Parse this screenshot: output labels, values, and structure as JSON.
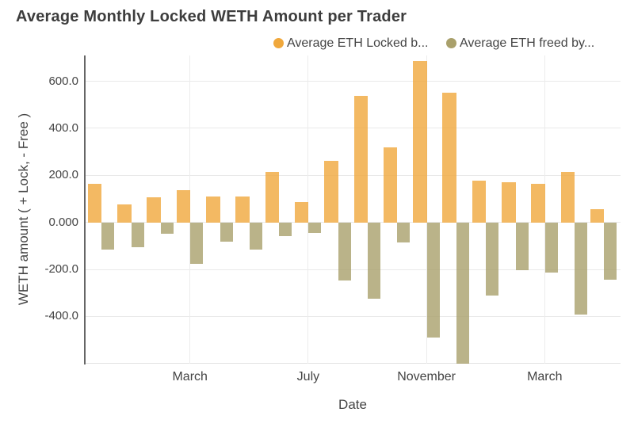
{
  "chart_data": {
    "type": "bar",
    "title": "Average Monthly Locked WETH Amount per Trader",
    "xlabel": "Date",
    "ylabel": "WETH amount ( + Lock, - Free )",
    "grid": true,
    "legend_position": "top",
    "ylim": [
      -601,
      710
    ],
    "y_ticks": [
      {
        "value": 600,
        "label": "600.0"
      },
      {
        "value": 400,
        "label": "400.0"
      },
      {
        "value": 200,
        "label": "200.0"
      },
      {
        "value": 0,
        "label": "0.000"
      },
      {
        "value": -200,
        "label": "-200.0"
      },
      {
        "value": -400,
        "label": "-400.0"
      }
    ],
    "x_ticks": [
      {
        "group_index": 3,
        "label": "March"
      },
      {
        "group_index": 7,
        "label": "July"
      },
      {
        "group_index": 11,
        "label": "November"
      },
      {
        "group_index": 15,
        "label": "March"
      }
    ],
    "group_count": 18,
    "series": [
      {
        "name": "Average ETH Locked b...",
        "color": "#F0A83C",
        "values": [
          163,
          76,
          107,
          138,
          110,
          110,
          215,
          85,
          262,
          537,
          319,
          688,
          552,
          177,
          171,
          165,
          216,
          57
        ]
      },
      {
        "name": "Average ETH freed by...",
        "color": "#A9A06B",
        "values": [
          -117,
          -106,
          -50,
          -177,
          -82,
          -115,
          -58,
          -45,
          -247,
          -326,
          -87,
          -489,
          -600,
          -311,
          -203,
          -213,
          -392,
          -245
        ]
      }
    ]
  },
  "colors": {
    "grid": "#E9E9E9",
    "zero_line": "#E9E9E9",
    "y_axis_line": "#666666",
    "x_axis_line": "#E2E2E2",
    "tick_text": "#444444",
    "title_text": "#3D3D3D",
    "background": "#FFFFFF"
  }
}
